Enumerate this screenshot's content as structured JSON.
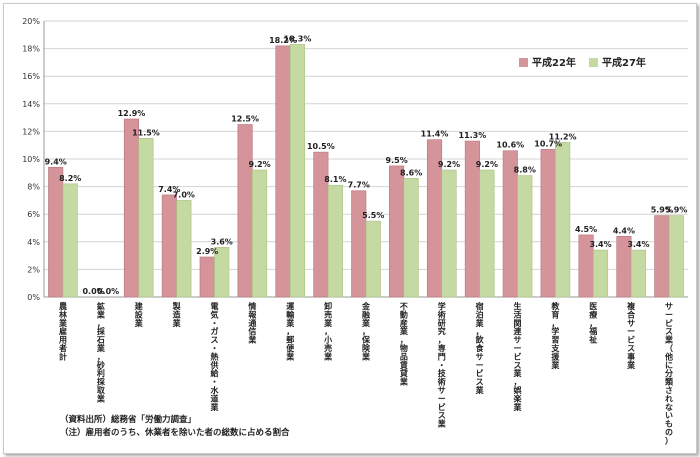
{
  "chart_data": {
    "type": "bar",
    "ylim": [
      0,
      20
    ],
    "yticks": [
      "0%",
      "2%",
      "4%",
      "6%",
      "8%",
      "10%",
      "12%",
      "14%",
      "16%",
      "18%",
      "20%"
    ],
    "grid": true,
    "legend_position": "top-right",
    "categories": [
      "農林業雇用者計",
      "鉱業，採石業，砂利採取業",
      "建設業",
      "製造業",
      "電気・ガス・熱供給・水道業",
      "情報通信業",
      "運輸業，郵便業",
      "卸売業，小売業",
      "金融業，保険業",
      "不動産業，物品賃貸業",
      "学術研究，専門・技術サービス業",
      "宿泊業，飲食サービス業",
      "生活関連サービス業，娯楽業",
      "教育，学習支援業",
      "医療，福祉",
      "複合サービス事業",
      "サービス業（他に分類されないもの）"
    ],
    "series": [
      {
        "name": "平成22年",
        "color": "#d4949a",
        "values": [
          9.4,
          0.0,
          12.9,
          7.4,
          2.9,
          12.5,
          18.2,
          10.5,
          7.7,
          9.5,
          11.4,
          11.3,
          10.6,
          10.7,
          4.5,
          4.4,
          5.9
        ],
        "labels": [
          "9.4%",
          "0.0%",
          "12.9%",
          "7.4%",
          "2.9%",
          "12.5%",
          "18.2%",
          "10.5%",
          "7.7%",
          "9.5%",
          "11.4%",
          "11.3%",
          "10.6%",
          "10.7%",
          "4.5%",
          "4.4%",
          "5.9%"
        ]
      },
      {
        "name": "平成27年",
        "color": "#c5d9a3",
        "values": [
          8.2,
          0.0,
          11.5,
          7.0,
          3.6,
          9.2,
          18.3,
          8.1,
          5.5,
          8.6,
          9.2,
          9.2,
          8.8,
          11.2,
          3.4,
          3.4,
          5.9
        ],
        "labels": [
          "8.2%",
          "0.0%",
          "11.5%",
          "7.0%",
          "3.6%",
          "9.2%",
          "18.3%",
          "8.1%",
          "5.5%",
          "8.6%",
          "9.2%",
          "9.2%",
          "8.8%",
          "11.2%",
          "3.4%",
          "3.4%",
          "5.9%"
        ]
      }
    ]
  },
  "notes": {
    "source": "（資料出所）総務省「労働力調査」",
    "note": "（注）雇用者のうち、休業者を除いた者の総数に占める割合"
  }
}
